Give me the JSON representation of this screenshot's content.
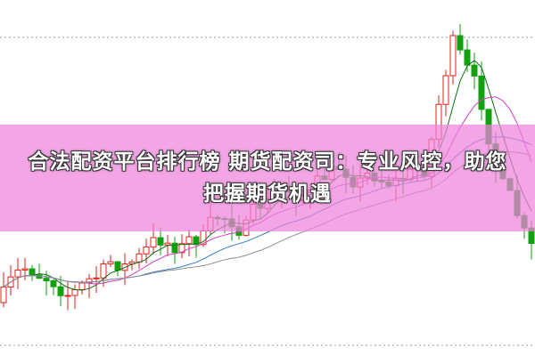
{
  "title": "合法配资平台排行榜 期货配资司：专业风控，助您把握期货机遇"
}
